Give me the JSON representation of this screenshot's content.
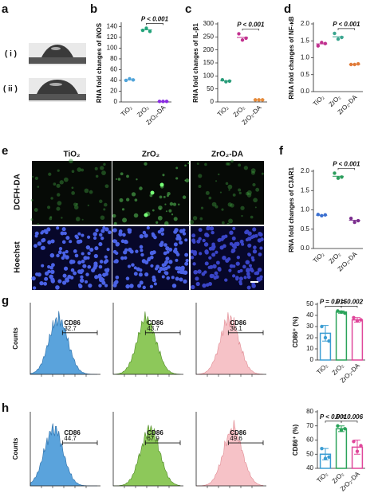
{
  "panel_labels": [
    "a",
    "e"
  ],
  "wettability": {
    "labels": [
      "( i )",
      "( ii )"
    ]
  },
  "fluorescence": {
    "columns": [
      "TiO₂",
      "ZrO₂",
      "ZrO₂-DA"
    ],
    "rows": [
      "DCFH-DA",
      "Hoechst"
    ]
  },
  "flow": {
    "ylabel": "Counts",
    "marker": "CD86",
    "g": [
      32.7,
      43.7,
      36.1
    ],
    "h": [
      44.7,
      67.9,
      49.6
    ]
  },
  "chart_data": [
    {
      "panel": "b",
      "type": "dot",
      "ylabel": "RNA fold changes of iNOS",
      "categories": [
        "TiO₂",
        "ZrO₂",
        "ZrO₂-DA"
      ],
      "colors": [
        "#4fa3d9",
        "#22a37a",
        "#8a2be2"
      ],
      "values": [
        41,
        134,
        1
      ],
      "points": [
        [
          40,
          43,
          41
        ],
        [
          133,
          137,
          131
        ],
        [
          1,
          1,
          1
        ]
      ],
      "ylim": [
        0,
        145
      ],
      "yticks": [
        0,
        20,
        40,
        60,
        80,
        100,
        120,
        140
      ],
      "annotations": [
        "P < 0.001"
      ]
    },
    {
      "panel": "c",
      "type": "dot",
      "ylabel": "RNA fold changes of IL-β1",
      "categories": [
        "TiO₂",
        "ZrO₂",
        "ZrO₂-DA"
      ],
      "colors": [
        "#2a9d7a",
        "#c2318f",
        "#e58a3a"
      ],
      "values": [
        81,
        248,
        8
      ],
      "points": [
        [
          85,
          78,
          80
        ],
        [
          262,
          238,
          245
        ],
        [
          8,
          8,
          8
        ]
      ],
      "ylim": [
        0,
        300
      ],
      "yticks": [
        0,
        50,
        100,
        150,
        200,
        250,
        300
      ],
      "annotations": [
        "P < 0.001"
      ]
    },
    {
      "panel": "d",
      "type": "dot",
      "ylabel": "RNA fold changes of NF-κB",
      "categories": [
        "TiO₂",
        "ZrO₂",
        "ZrO₂-DA"
      ],
      "colors": [
        "#c0318f",
        "#3aa58f",
        "#e07b39"
      ],
      "values": [
        1.41,
        1.62,
        0.81
      ],
      "points": [
        [
          1.35,
          1.45,
          1.42
        ],
        [
          1.72,
          1.55,
          1.6
        ],
        [
          0.8,
          0.8,
          0.82
        ]
      ],
      "ylim": [
        0,
        2
      ],
      "yticks": [
        {
          "value": 0,
          "label": "0.0"
        },
        {
          "value": 0.5,
          "label": "0.5"
        },
        {
          "value": 1,
          "label": "1.0"
        },
        {
          "value": 1.5,
          "label": "1.5"
        },
        {
          "value": 2,
          "label": "2.0"
        }
      ],
      "annotations": [
        "P < 0.001"
      ]
    },
    {
      "panel": "f",
      "type": "dot",
      "ylabel": "RNA fold changes of C3AR1",
      "categories": [
        "TiO₂",
        "ZrO₂",
        "ZrO₂-DA"
      ],
      "colors": [
        "#3a6fd0",
        "#2a9d5c",
        "#7b2d8e"
      ],
      "values": [
        0.86,
        1.87,
        0.73
      ],
      "points": [
        [
          0.88,
          0.85,
          0.87
        ],
        [
          1.95,
          1.82,
          1.85
        ],
        [
          0.78,
          0.68,
          0.72
        ]
      ],
      "ylim": [
        0,
        2
      ],
      "yticks": [
        {
          "value": 0,
          "label": "0.0"
        },
        {
          "value": 0.5,
          "label": "0.5"
        },
        {
          "value": 1,
          "label": "1.0"
        },
        {
          "value": 1.5,
          "label": "1.5"
        },
        {
          "value": 2,
          "label": "2.0"
        }
      ],
      "annotations": [
        "P < 0.001"
      ]
    },
    {
      "panel": "g",
      "type": "bar",
      "ylabel": "CD86⁺ (%)",
      "categories": [
        "TiO₂",
        "ZrO₂",
        "ZrO₂-DA"
      ],
      "colors": [
        "#3b9dd3",
        "#2aa35a",
        "#e0469a"
      ],
      "values": [
        24,
        43,
        36
      ],
      "errors": [
        7,
        1,
        2
      ],
      "points": [
        [
          30,
          20,
          17
        ],
        [
          44,
          43,
          42
        ],
        [
          38,
          35,
          36
        ]
      ],
      "ylim": [
        0,
        50
      ],
      "yticks": [
        0,
        10,
        20,
        30,
        40,
        50
      ],
      "annotations": [
        "P = 0.015",
        "P = 0.002"
      ]
    },
    {
      "panel": "h",
      "type": "bar",
      "ylabel": "CD86⁺ (%)",
      "categories": [
        "TiO₂",
        "ZrO₂",
        "ZrO₂-DA"
      ],
      "colors": [
        "#3b9dd3",
        "#2aa35a",
        "#e0469a"
      ],
      "values": [
        50,
        68,
        55
      ],
      "errors": [
        4,
        2,
        5
      ],
      "points": [
        [
          54,
          47,
          48
        ],
        [
          70,
          67,
          68
        ],
        [
          59,
          52,
          56
        ]
      ],
      "ylim": [
        40,
        80
      ],
      "yticks": [
        40,
        50,
        60,
        70,
        80
      ],
      "annotations": [
        "P < 0.001",
        "P = 0.006"
      ]
    }
  ]
}
